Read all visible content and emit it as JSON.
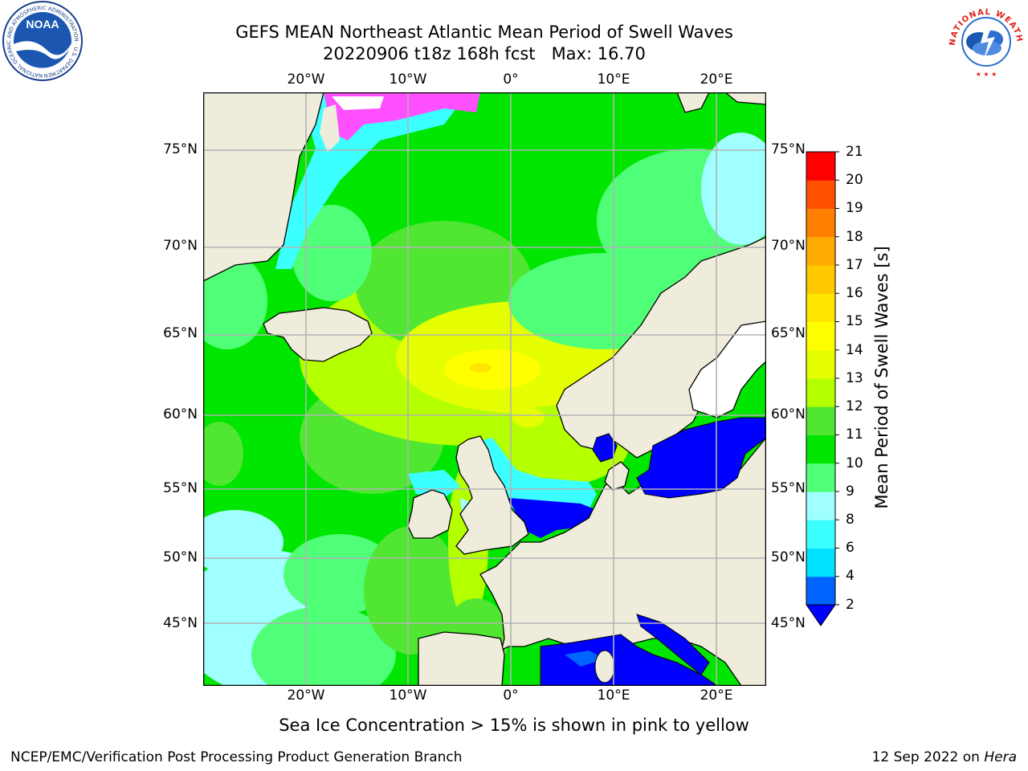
{
  "header": {
    "title_line1": "GEFS MEAN Northeast Atlantic Mean Period of Swell Waves",
    "title_line2": "20220906 t18z 168h fcst   Max: 16.70"
  },
  "logos": {
    "noaa_text": "NOAA",
    "noaa_ring_text": "NATIONAL OCEANIC AND ATMOSPHERIC ADMINISTRATION · U.S. DEPARTMENT OF COMMERCE",
    "nws_ring_text": "NATIONAL WEATHER SERVICE"
  },
  "map": {
    "lon_labels": [
      "20°W",
      "10°W",
      "0°",
      "10°E",
      "20°E"
    ],
    "lat_labels": [
      "75°N",
      "70°N",
      "65°N",
      "60°N",
      "55°N",
      "50°N",
      "45°N"
    ],
    "lon_extent": [
      -30,
      25
    ],
    "lat_extent": [
      41,
      78
    ],
    "land_color": "#efecdc",
    "grid_color": "#b3b3b3"
  },
  "colorbar": {
    "title": "Mean Period of Swell Waves [s]",
    "levels": [
      2,
      4,
      6,
      8,
      9,
      10,
      11,
      12,
      13,
      14,
      15,
      16,
      17,
      18,
      19,
      20,
      21
    ],
    "labels": [
      "2",
      "4",
      "6",
      "8",
      "9",
      "10",
      "11",
      "12",
      "13",
      "14",
      "15",
      "16",
      "17",
      "18",
      "19",
      "20",
      "21"
    ],
    "colors": [
      "#0064ff",
      "#00e0ff",
      "#3cffff",
      "#a0ffff",
      "#50ff78",
      "#00e600",
      "#50e632",
      "#b4ff00",
      "#e6ff00",
      "#ffff00",
      "#ffe600",
      "#ffc800",
      "#ffaa00",
      "#ff8000",
      "#ff5000",
      "#ff0000"
    ],
    "under_color": "#0000ff",
    "ice_pink": "#ff50ff"
  },
  "note": "Sea Ice Concentration > 15% is shown in pink to yellow",
  "footer": {
    "left": "NCEP/EMC/Verification Post Processing Product Generation Branch",
    "right_date": "12 Sep 2022 on ",
    "right_host": "Hera"
  }
}
